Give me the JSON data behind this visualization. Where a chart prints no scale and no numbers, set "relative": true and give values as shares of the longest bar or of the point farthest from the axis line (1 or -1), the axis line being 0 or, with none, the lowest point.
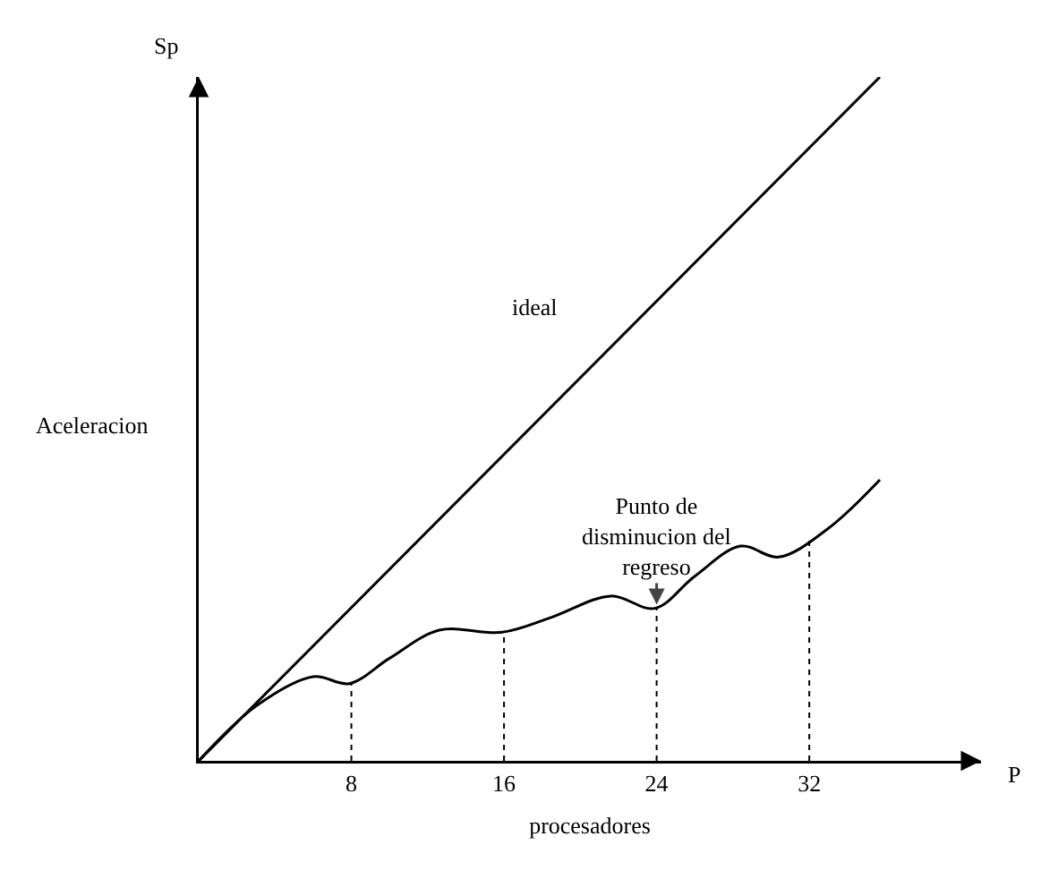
{
  "chart_data": {
    "type": "line",
    "relative": true,
    "xlim": [
      0,
      41
    ],
    "xticks": [
      8,
      16,
      24,
      32
    ],
    "xlabel": "procesadores",
    "ylabel": "Aceleracion",
    "series": [
      {
        "name": "ideal",
        "color": "#000000",
        "x": [
          0,
          35.7
        ],
        "values": [
          0,
          1
        ]
      },
      {
        "color": "#000000",
        "x": [
          0,
          3,
          6,
          7.9,
          10,
          12.6,
          15.9,
          18.5,
          21.6,
          23.9,
          26,
          28.4,
          30.4,
          33,
          35.7
        ],
        "values": [
          0,
          0.08,
          0.123,
          0.113,
          0.15,
          0.191,
          0.188,
          0.21,
          0.241,
          0.223,
          0.27,
          0.314,
          0.298,
          0.34,
          0.411
        ]
      }
    ],
    "ref_lines": [
      {
        "axis": "x",
        "value": 8,
        "line_style": "dotted",
        "color": "#000000"
      },
      {
        "axis": "x",
        "value": 16,
        "line_style": "dotted",
        "color": "#000000"
      },
      {
        "axis": "x",
        "value": 24,
        "line_style": "dotted",
        "color": "#000000"
      },
      {
        "axis": "x",
        "value": 32,
        "line_style": "dotted",
        "color": "#000000"
      }
    ],
    "annotations": [
      "Sp",
      "P",
      {
        "text": "Punto de disminucion del regreso",
        "x": 24,
        "y": 0.223
      }
    ],
    "grid": false,
    "legend": false,
    "marker": "none",
    "line_style": "solid"
  }
}
